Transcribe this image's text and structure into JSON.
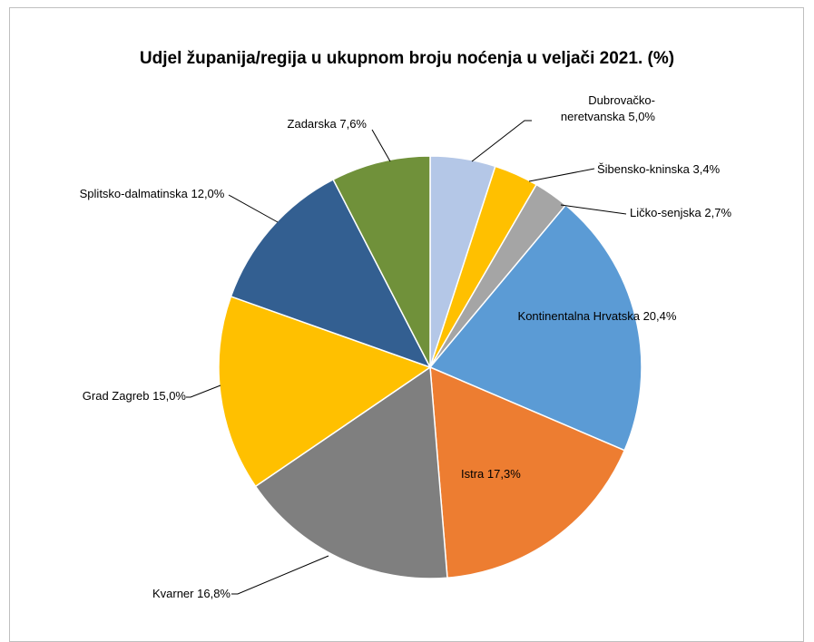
{
  "chart_data": {
    "type": "pie",
    "title": "Udjel županija/regija u ukupnom broju noćenja u veljači 2021. (%)",
    "categories": [
      "Dubrovačko-neretvanska",
      "Šibensko-kninska",
      "Ličko-senjska",
      "Kontinentalna Hrvatska",
      "Istra",
      "Kvarner",
      "Grad Zagreb",
      "Splitsko-dalmatinska",
      "Zadarska"
    ],
    "values": [
      5.0,
      3.4,
      2.7,
      20.4,
      17.3,
      16.8,
      15.0,
      12.0,
      7.6
    ],
    "value_labels": [
      "5,0%",
      "3,4%",
      "2,7%",
      "20,4%",
      "17,3%",
      "16,8%",
      "15,0%",
      "12,0%",
      "7,6%"
    ],
    "colors": [
      "#b4c7e7",
      "#ffc000",
      "#a5a5a5",
      "#5b9bd5",
      "#ed7d31",
      "#7f7f7f",
      "#ffc000",
      "#335f91",
      "#70913a"
    ]
  }
}
